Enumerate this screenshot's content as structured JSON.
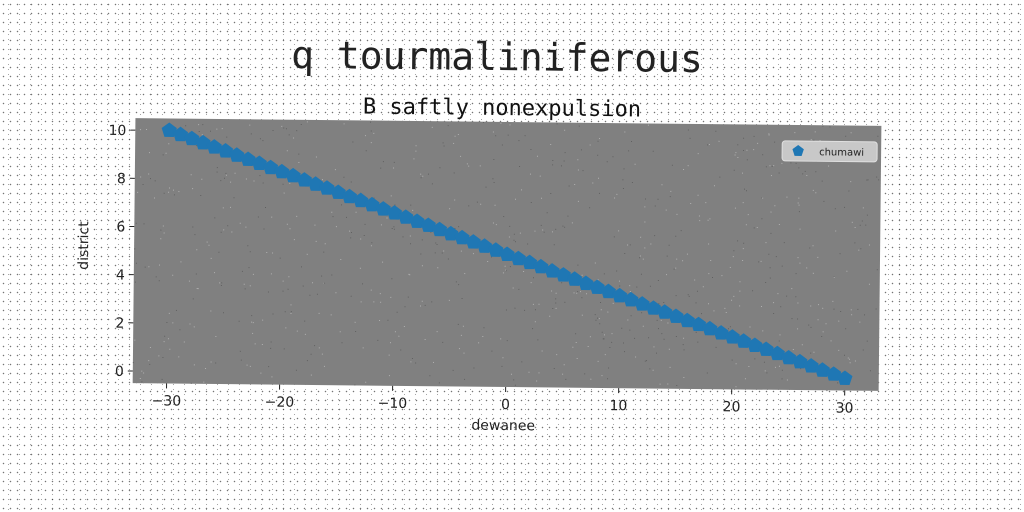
{
  "figure": {
    "suptitle": "q tourmaliniferous"
  },
  "chart_data": {
    "type": "scatter",
    "title": "B saftly nonexpulsion",
    "xlabel": "dewanee",
    "ylabel": "district",
    "xlim": [
      -33,
      33
    ],
    "ylim": [
      -0.5,
      10.5
    ],
    "xticks": [
      -30,
      -20,
      -10,
      0,
      10,
      20,
      30
    ],
    "yticks": [
      0,
      2,
      4,
      6,
      8,
      10
    ],
    "xtick_labels": [
      "−30",
      "−20",
      "−10",
      "0",
      "10",
      "20",
      "30"
    ],
    "ytick_labels": [
      "0",
      "2",
      "4",
      "6",
      "8",
      "10"
    ],
    "grid": false,
    "legend_position": "top-right",
    "series": [
      {
        "name": "chumawi",
        "color": "#1f77b4",
        "marker": "pentagon",
        "x": [
          -30,
          -29,
          -28,
          -27,
          -26,
          -25,
          -24,
          -23,
          -22,
          -21,
          -20,
          -19,
          -18,
          -17,
          -16,
          -15,
          -14,
          -13,
          -12,
          -11,
          -10,
          -9,
          -8,
          -7,
          -6,
          -5,
          -4,
          -3,
          -2,
          -1,
          0,
          1,
          2,
          3,
          4,
          5,
          6,
          7,
          8,
          9,
          10,
          11,
          12,
          13,
          14,
          15,
          16,
          17,
          18,
          19,
          20,
          21,
          22,
          23,
          24,
          25,
          26,
          27,
          28,
          29,
          30
        ],
        "y": [
          10.0,
          9.83,
          9.67,
          9.5,
          9.33,
          9.17,
          9.0,
          8.83,
          8.67,
          8.5,
          8.33,
          8.17,
          8.0,
          7.83,
          7.67,
          7.5,
          7.33,
          7.17,
          7.0,
          6.83,
          6.67,
          6.5,
          6.33,
          6.17,
          6.0,
          5.83,
          5.67,
          5.5,
          5.33,
          5.17,
          5.0,
          4.83,
          4.67,
          4.5,
          4.33,
          4.17,
          4.0,
          3.83,
          3.67,
          3.5,
          3.33,
          3.17,
          3.0,
          2.83,
          2.67,
          2.5,
          2.33,
          2.17,
          2.0,
          1.83,
          1.67,
          1.5,
          1.33,
          1.17,
          1.0,
          0.83,
          0.67,
          0.5,
          0.33,
          0.17,
          0.0
        ]
      }
    ],
    "plot_background": "#808080"
  }
}
